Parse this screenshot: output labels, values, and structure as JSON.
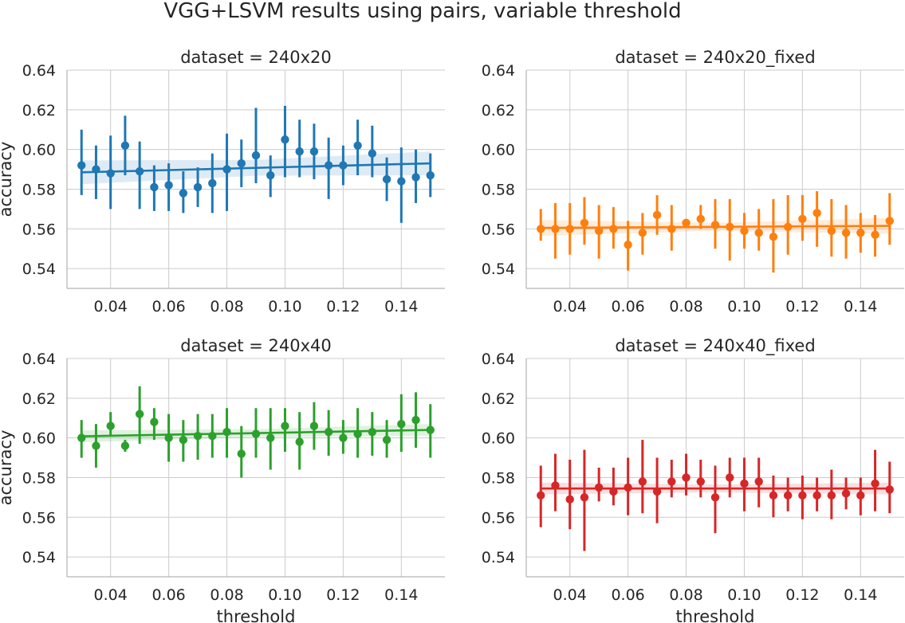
{
  "title": "VGG+LSVM results using pairs, variable threshold",
  "chart_data": [
    {
      "type": "scatter",
      "title": "dataset = 240x20",
      "xlabel": "",
      "ylabel": "accuracy",
      "color": "#1f77b4",
      "xlim": [
        0.025,
        0.155
      ],
      "ylim": [
        0.53,
        0.64
      ],
      "xticks": [
        "0.04",
        "0.06",
        "0.08",
        "0.10",
        "0.12",
        "0.14"
      ],
      "yticks": [
        "0.54",
        "0.56",
        "0.58",
        "0.60",
        "0.62",
        "0.64"
      ],
      "x": [
        0.03,
        0.035,
        0.04,
        0.045,
        0.05,
        0.055,
        0.06,
        0.065,
        0.07,
        0.075,
        0.08,
        0.085,
        0.09,
        0.095,
        0.1,
        0.105,
        0.11,
        0.115,
        0.12,
        0.125,
        0.13,
        0.135,
        0.14,
        0.145,
        0.15
      ],
      "y": [
        0.592,
        0.59,
        0.588,
        0.602,
        0.589,
        0.581,
        0.582,
        0.578,
        0.581,
        0.583,
        0.59,
        0.593,
        0.597,
        0.587,
        0.605,
        0.599,
        0.599,
        0.592,
        0.592,
        0.602,
        0.598,
        0.585,
        0.584,
        0.586,
        0.587
      ],
      "ci_low": [
        0.577,
        0.575,
        0.57,
        0.587,
        0.57,
        0.569,
        0.569,
        0.568,
        0.571,
        0.568,
        0.569,
        0.581,
        0.583,
        0.576,
        0.586,
        0.586,
        0.585,
        0.575,
        0.582,
        0.587,
        0.586,
        0.574,
        0.563,
        0.573,
        0.576
      ],
      "ci_high": [
        0.61,
        0.602,
        0.607,
        0.617,
        0.604,
        0.592,
        0.593,
        0.589,
        0.591,
        0.598,
        0.608,
        0.605,
        0.621,
        0.597,
        0.622,
        0.615,
        0.613,
        0.606,
        0.602,
        0.615,
        0.612,
        0.596,
        0.601,
        0.6,
        0.598
      ],
      "fit": [
        0.5885,
        0.593
      ],
      "fit_band": [
        0.006,
        0.004,
        0.006
      ]
    },
    {
      "type": "scatter",
      "title": "dataset = 240x20_fixed",
      "xlabel": "",
      "ylabel": "",
      "color": "#ff7f0e",
      "xlim": [
        0.025,
        0.155
      ],
      "ylim": [
        0.53,
        0.64
      ],
      "xticks": [
        "0.04",
        "0.06",
        "0.08",
        "0.10",
        "0.12",
        "0.14"
      ],
      "yticks": [
        "0.54",
        "0.56",
        "0.58",
        "0.60",
        "0.62",
        "0.64"
      ],
      "x": [
        0.03,
        0.035,
        0.04,
        0.045,
        0.05,
        0.055,
        0.06,
        0.065,
        0.07,
        0.075,
        0.08,
        0.085,
        0.09,
        0.095,
        0.1,
        0.105,
        0.11,
        0.115,
        0.12,
        0.125,
        0.13,
        0.135,
        0.14,
        0.145,
        0.15
      ],
      "y": [
        0.56,
        0.56,
        0.56,
        0.563,
        0.559,
        0.56,
        0.552,
        0.558,
        0.567,
        0.56,
        0.563,
        0.565,
        0.562,
        0.561,
        0.559,
        0.558,
        0.556,
        0.561,
        0.565,
        0.568,
        0.559,
        0.558,
        0.558,
        0.557,
        0.564
      ],
      "ci_low": [
        0.554,
        0.545,
        0.547,
        0.552,
        0.545,
        0.55,
        0.539,
        0.547,
        0.557,
        0.549,
        0.561,
        0.56,
        0.55,
        0.544,
        0.55,
        0.549,
        0.538,
        0.547,
        0.554,
        0.551,
        0.546,
        0.545,
        0.548,
        0.546,
        0.552
      ],
      "ci_high": [
        0.57,
        0.573,
        0.573,
        0.576,
        0.572,
        0.571,
        0.564,
        0.568,
        0.577,
        0.572,
        0.565,
        0.572,
        0.575,
        0.575,
        0.568,
        0.57,
        0.575,
        0.577,
        0.577,
        0.579,
        0.575,
        0.572,
        0.568,
        0.567,
        0.578
      ],
      "fit": [
        0.5605,
        0.5615
      ],
      "fit_band": [
        0.004,
        0.002,
        0.004
      ]
    },
    {
      "type": "scatter",
      "title": "dataset = 240x40",
      "xlabel": "threshold",
      "ylabel": "accuracy",
      "color": "#2ca02c",
      "xlim": [
        0.025,
        0.155
      ],
      "ylim": [
        0.53,
        0.64
      ],
      "xticks": [
        "0.04",
        "0.06",
        "0.08",
        "0.10",
        "0.12",
        "0.14"
      ],
      "yticks": [
        "0.54",
        "0.56",
        "0.58",
        "0.60",
        "0.62",
        "0.64"
      ],
      "x": [
        0.03,
        0.035,
        0.04,
        0.045,
        0.05,
        0.055,
        0.06,
        0.065,
        0.07,
        0.075,
        0.08,
        0.085,
        0.09,
        0.095,
        0.1,
        0.105,
        0.11,
        0.115,
        0.12,
        0.125,
        0.13,
        0.135,
        0.14,
        0.145,
        0.15
      ],
      "y": [
        0.6,
        0.596,
        0.606,
        0.596,
        0.612,
        0.608,
        0.6,
        0.599,
        0.601,
        0.601,
        0.603,
        0.592,
        0.602,
        0.6,
        0.606,
        0.598,
        0.606,
        0.603,
        0.6,
        0.602,
        0.603,
        0.599,
        0.607,
        0.609,
        0.604
      ],
      "ci_low": [
        0.59,
        0.585,
        0.601,
        0.593,
        0.597,
        0.599,
        0.588,
        0.588,
        0.589,
        0.59,
        0.59,
        0.58,
        0.59,
        0.584,
        0.593,
        0.584,
        0.594,
        0.591,
        0.592,
        0.59,
        0.591,
        0.59,
        0.593,
        0.595,
        0.59
      ],
      "ci_high": [
        0.609,
        0.607,
        0.613,
        0.599,
        0.626,
        0.615,
        0.612,
        0.609,
        0.612,
        0.612,
        0.615,
        0.606,
        0.615,
        0.615,
        0.615,
        0.613,
        0.618,
        0.614,
        0.609,
        0.615,
        0.613,
        0.609,
        0.622,
        0.623,
        0.617
      ],
      "fit": [
        0.6008,
        0.604
      ],
      "fit_band": [
        0.003,
        0.002,
        0.003
      ]
    },
    {
      "type": "scatter",
      "title": "dataset = 240x40_fixed",
      "xlabel": "threshold",
      "ylabel": "",
      "color": "#d62728",
      "xlim": [
        0.025,
        0.155
      ],
      "ylim": [
        0.53,
        0.64
      ],
      "xticks": [
        "0.04",
        "0.06",
        "0.08",
        "0.10",
        "0.12",
        "0.14"
      ],
      "yticks": [
        "0.54",
        "0.56",
        "0.58",
        "0.60",
        "0.62",
        "0.64"
      ],
      "x": [
        0.03,
        0.035,
        0.04,
        0.045,
        0.05,
        0.055,
        0.06,
        0.065,
        0.07,
        0.075,
        0.08,
        0.085,
        0.09,
        0.095,
        0.1,
        0.105,
        0.11,
        0.115,
        0.12,
        0.125,
        0.13,
        0.135,
        0.14,
        0.145,
        0.15
      ],
      "y": [
        0.571,
        0.576,
        0.569,
        0.57,
        0.575,
        0.573,
        0.575,
        0.578,
        0.573,
        0.578,
        0.58,
        0.578,
        0.57,
        0.58,
        0.577,
        0.578,
        0.571,
        0.571,
        0.571,
        0.571,
        0.571,
        0.572,
        0.571,
        0.577,
        0.574
      ],
      "ci_low": [
        0.555,
        0.563,
        0.554,
        0.543,
        0.568,
        0.566,
        0.561,
        0.562,
        0.557,
        0.57,
        0.571,
        0.57,
        0.552,
        0.57,
        0.563,
        0.565,
        0.56,
        0.563,
        0.559,
        0.563,
        0.559,
        0.564,
        0.561,
        0.563,
        0.562
      ],
      "ci_high": [
        0.586,
        0.592,
        0.589,
        0.594,
        0.585,
        0.585,
        0.59,
        0.599,
        0.59,
        0.589,
        0.592,
        0.589,
        0.586,
        0.59,
        0.59,
        0.59,
        0.581,
        0.58,
        0.581,
        0.58,
        0.584,
        0.58,
        0.58,
        0.594,
        0.588
      ],
      "fit": [
        0.5745,
        0.5745
      ],
      "fit_band": [
        0.003,
        0.002,
        0.003
      ]
    }
  ]
}
